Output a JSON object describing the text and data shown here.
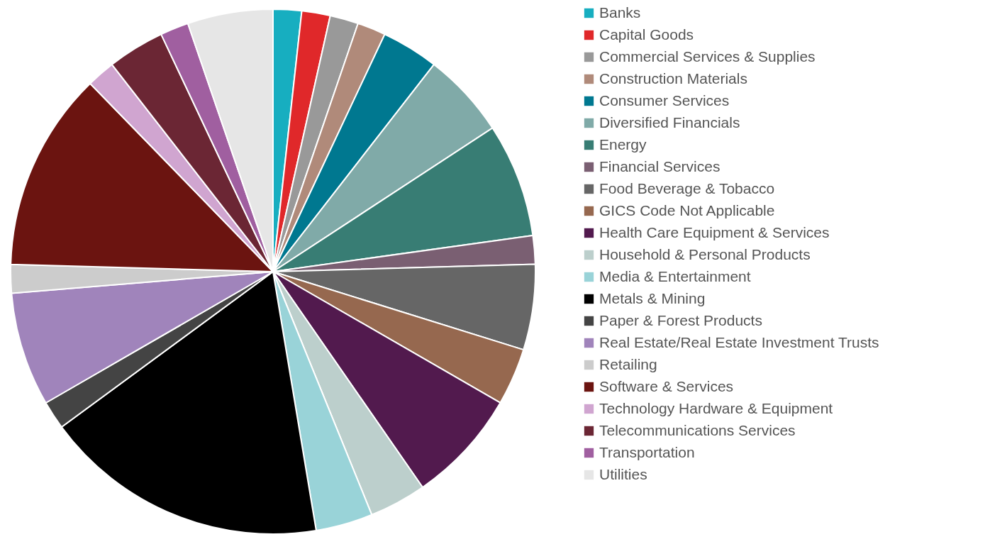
{
  "chart_data": {
    "type": "pie",
    "legend": "right",
    "categories": [
      "Banks",
      "Capital Goods",
      "Commercial Services & Supplies",
      "Construction Materials",
      "Consumer Services",
      "Diversified Financials",
      "Energy",
      "Financial Services",
      "Food Beverage & Tobacco",
      "GICS Code Not Applicable",
      "Health Care Equipment & Services",
      "Household & Personal Products",
      "Media & Entertainment",
      "Metals & Mining",
      "Paper & Forest Products",
      "Real Estate/Real Estate Investment Trusts",
      "Retailing",
      "Software & Services",
      "Technology Hardware & Equipment",
      "Telecommunications Services",
      "Transportation",
      "Utilities"
    ],
    "values": [
      1.75,
      1.75,
      1.75,
      1.75,
      3.51,
      5.26,
      7.02,
      1.75,
      5.26,
      3.51,
      7.02,
      3.51,
      3.51,
      17.54,
      1.75,
      7.02,
      1.75,
      12.28,
      1.75,
      3.51,
      1.75,
      5.26
    ],
    "colors": [
      "#17aec0",
      "#e0282a",
      "#999999",
      "#b08a7a",
      "#007890",
      "#80aaa8",
      "#387d74",
      "#7a5f72",
      "#666666",
      "#96684f",
      "#521a4e",
      "#bccfcc",
      "#99d3d8",
      "#000000",
      "#444444",
      "#a084bb",
      "#cccccc",
      "#6b1410",
      "#d0a5d0",
      "#6b2634",
      "#a05fa0",
      "#e6e6e6"
    ]
  }
}
